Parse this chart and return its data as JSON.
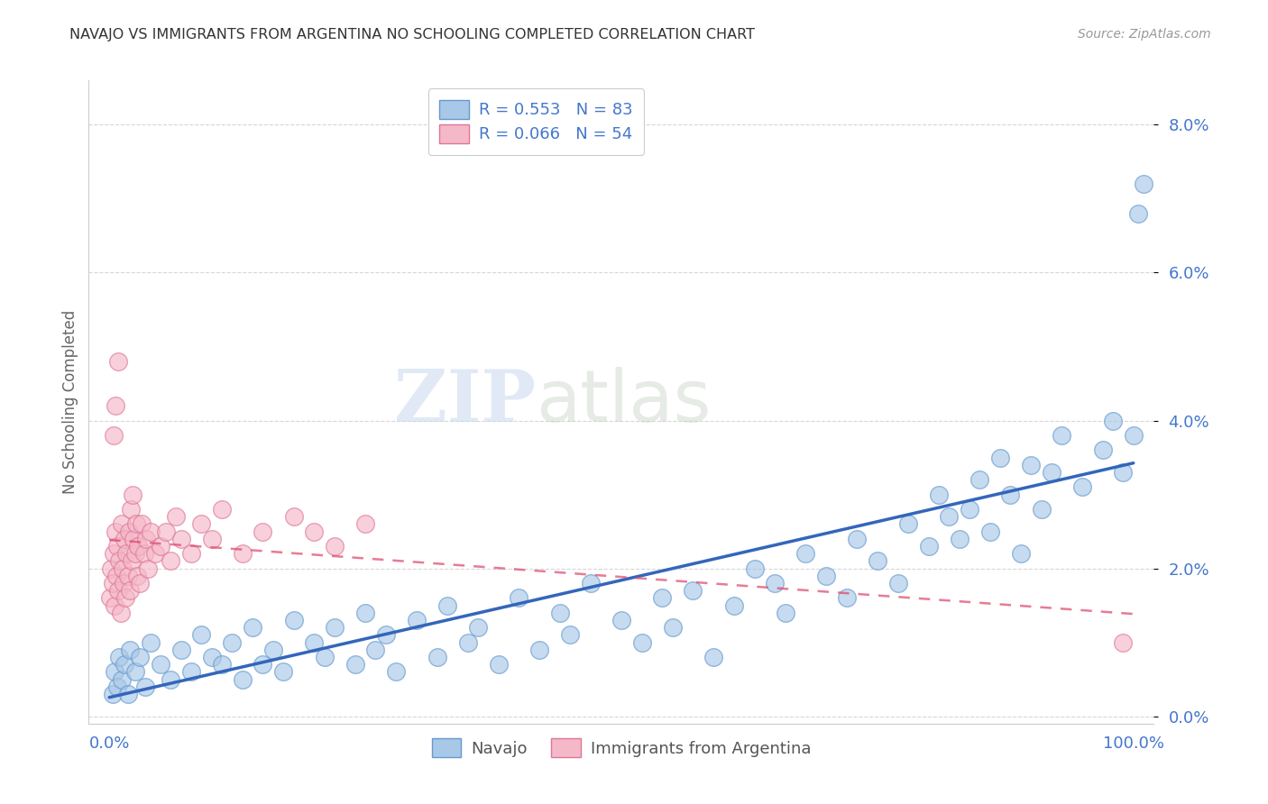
{
  "title": "NAVAJO VS IMMIGRANTS FROM ARGENTINA NO SCHOOLING COMPLETED CORRELATION CHART",
  "source": "Source: ZipAtlas.com",
  "ylabel": "No Schooling Completed",
  "watermark_zip": "ZIP",
  "watermark_atlas": "atlas",
  "navajo_R": 0.553,
  "navajo_N": 83,
  "argentina_R": 0.066,
  "argentina_N": 54,
  "navajo_color": "#a8c8e8",
  "navajo_edge": "#6699cc",
  "argentina_color": "#f5b8c8",
  "argentina_edge": "#dd7799",
  "trend_navajo_color": "#3366bb",
  "trend_argentina_color": "#dd4466",
  "background": "#ffffff",
  "grid_color": "#cccccc",
  "tick_color": "#4477cc",
  "title_color": "#333333",
  "xlim": [
    -2,
    102
  ],
  "ylim": [
    -0.001,
    0.086
  ],
  "yticks": [
    0.0,
    0.02,
    0.04,
    0.06,
    0.08
  ],
  "ytick_labels": [
    "0.0%",
    "2.0%",
    "4.0%",
    "6.0%",
    "8.0%"
  ],
  "xticks": [
    0,
    20,
    40,
    60,
    80,
    100
  ],
  "xtick_labels": [
    "0.0%",
    "",
    "",
    "",
    "",
    "100.0%"
  ],
  "navajo_x": [
    0.3,
    0.5,
    0.8,
    1.0,
    1.2,
    1.5,
    1.8,
    2.0,
    2.5,
    3.0,
    3.5,
    4.0,
    5.0,
    6.0,
    7.0,
    8.0,
    9.0,
    10.0,
    11.0,
    12.0,
    13.0,
    14.0,
    15.0,
    16.0,
    17.0,
    18.0,
    20.0,
    21.0,
    22.0,
    24.0,
    25.0,
    26.0,
    27.0,
    28.0,
    30.0,
    32.0,
    33.0,
    35.0,
    36.0,
    38.0,
    40.0,
    42.0,
    44.0,
    45.0,
    47.0,
    50.0,
    52.0,
    54.0,
    55.0,
    57.0,
    59.0,
    61.0,
    63.0,
    65.0,
    66.0,
    68.0,
    70.0,
    72.0,
    73.0,
    75.0,
    77.0,
    78.0,
    80.0,
    81.0,
    82.0,
    83.0,
    84.0,
    85.0,
    86.0,
    87.0,
    88.0,
    89.0,
    90.0,
    91.0,
    92.0,
    93.0,
    95.0,
    97.0,
    98.0,
    99.0,
    100.0,
    100.5,
    101.0
  ],
  "navajo_y": [
    0.003,
    0.006,
    0.004,
    0.008,
    0.005,
    0.007,
    0.003,
    0.009,
    0.006,
    0.008,
    0.004,
    0.01,
    0.007,
    0.005,
    0.009,
    0.006,
    0.011,
    0.008,
    0.007,
    0.01,
    0.005,
    0.012,
    0.007,
    0.009,
    0.006,
    0.013,
    0.01,
    0.008,
    0.012,
    0.007,
    0.014,
    0.009,
    0.011,
    0.006,
    0.013,
    0.008,
    0.015,
    0.01,
    0.012,
    0.007,
    0.016,
    0.009,
    0.014,
    0.011,
    0.018,
    0.013,
    0.01,
    0.016,
    0.012,
    0.017,
    0.008,
    0.015,
    0.02,
    0.018,
    0.014,
    0.022,
    0.019,
    0.016,
    0.024,
    0.021,
    0.018,
    0.026,
    0.023,
    0.03,
    0.027,
    0.024,
    0.028,
    0.032,
    0.025,
    0.035,
    0.03,
    0.022,
    0.034,
    0.028,
    0.033,
    0.038,
    0.031,
    0.036,
    0.04,
    0.033,
    0.038,
    0.068,
    0.072
  ],
  "argentina_x": [
    0.1,
    0.2,
    0.3,
    0.4,
    0.5,
    0.6,
    0.7,
    0.8,
    0.9,
    1.0,
    1.1,
    1.2,
    1.3,
    1.4,
    1.5,
    1.6,
    1.7,
    1.8,
    1.9,
    2.0,
    2.1,
    2.2,
    2.3,
    2.4,
    2.5,
    2.6,
    2.7,
    2.8,
    3.0,
    3.2,
    3.4,
    3.6,
    3.8,
    4.0,
    4.5,
    5.0,
    5.5,
    6.0,
    6.5,
    7.0,
    8.0,
    9.0,
    10.0,
    11.0,
    13.0,
    15.0,
    18.0,
    20.0,
    22.0,
    25.0,
    0.4,
    0.6,
    0.9,
    99.0
  ],
  "argentina_y": [
    0.016,
    0.02,
    0.018,
    0.022,
    0.015,
    0.025,
    0.019,
    0.023,
    0.017,
    0.021,
    0.014,
    0.026,
    0.02,
    0.018,
    0.024,
    0.016,
    0.022,
    0.019,
    0.025,
    0.017,
    0.028,
    0.021,
    0.03,
    0.024,
    0.022,
    0.026,
    0.019,
    0.023,
    0.018,
    0.026,
    0.022,
    0.024,
    0.02,
    0.025,
    0.022,
    0.023,
    0.025,
    0.021,
    0.027,
    0.024,
    0.022,
    0.026,
    0.024,
    0.028,
    0.022,
    0.025,
    0.027,
    0.025,
    0.023,
    0.026,
    0.038,
    0.042,
    0.048,
    0.01
  ]
}
